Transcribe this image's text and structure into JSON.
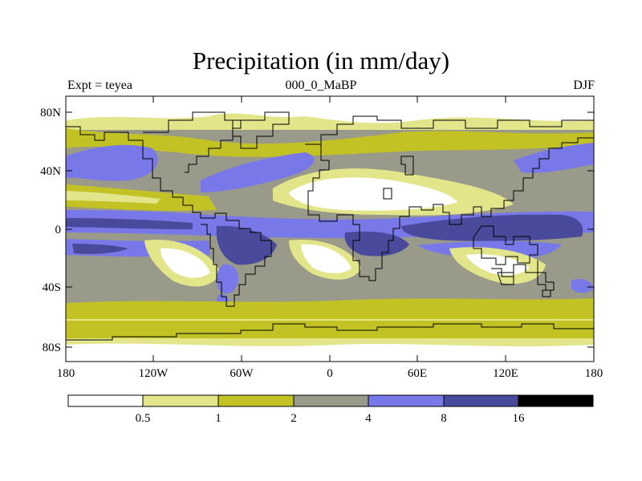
{
  "title": "Precipitation (in mm/day)",
  "experiment": "Expt = teyea",
  "case_label": "000_0_MaBP",
  "season": "DJF",
  "lat_labels": [
    "80N",
    "40N",
    "0",
    "40S",
    "80S"
  ],
  "lon_labels": [
    "180",
    "120W",
    "60W",
    "0",
    "60E",
    "120E",
    "180"
  ],
  "colorbar": {
    "colors": [
      "#ffffff",
      "#e3e58b",
      "#c2c224",
      "#9a9a8a",
      "#7878e8",
      "#4a4a9c",
      "#000000"
    ],
    "labels": [
      "0.5",
      "1",
      "2",
      "4",
      "8",
      "16"
    ]
  }
}
